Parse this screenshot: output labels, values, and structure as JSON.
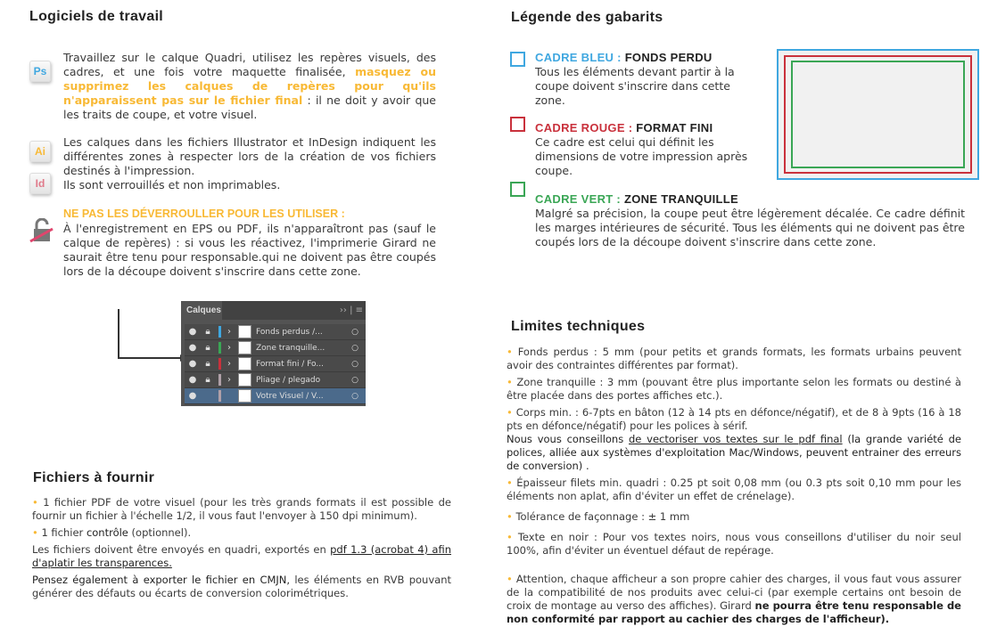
{
  "logiciels": {
    "title": "Logiciels de travail",
    "ps_icon": "Ps",
    "ai_icon": "Ai",
    "id_icon": "Id",
    "p1_a": "Travaillez sur le calque Quadri, utilisez les repères visuels, des cadres, et une fois votre maquette finalisée, ",
    "p1_b": "masquez ou supprimez les calques de repères pour qu'ils n'apparaissent pas sur le fichier final",
    "p1_c": " : il ne doit y avoir que les traits de coupe, et votre visuel.",
    "p2": "Les calques dans les fichiers Illustrator et InDesign indiquent les différentes zones à respecter lors de la création de vos fichiers destinés à l'impression.",
    "p3": "Ils sont verrouillés et non imprimables.",
    "warning_title": "NE PAS LES DÉVERROULLER POUR LES UTILISER :",
    "warning_text": "À l'enregistrement en EPS ou PDF, ils n'apparaîtront pas (sauf le calque de repères) : si vous les réactivez, l'imprimerie Girard ne saurait être tenu pour responsable.qui ne doivent pas être coupés lors de la découpe doivent s'inscrire dans cette zone."
  },
  "layers_panel": {
    "title": "Calques",
    "menu_icons": "›› | ≡",
    "layers": [
      {
        "name": "Fonds perdus /...",
        "color": "#3fa7e0",
        "locked": true
      },
      {
        "name": "Zone tranquille...",
        "color": "#3aa655",
        "locked": true
      },
      {
        "name": "Format fini / Fo...",
        "color": "#c9313c",
        "locked": true
      },
      {
        "name": "Pliage / plegado",
        "color": "#b0a0a8",
        "locked": true
      },
      {
        "name": "Votre Visuel / V...",
        "color": "#b0a0a8",
        "locked": false
      }
    ]
  },
  "fichiers": {
    "title": "Fichiers à fournir",
    "b1": "1 fichier PDF de votre visuel (pour les très grands formats il est possible de fournir un fichier à l'échelle 1/2, il vous faut l'envoyer à 150 dpi minimum).",
    "b2_a": "1 fichier ",
    "b2_b": "contrôle",
    "b2_c": "  (optionnel).",
    "p1_a": "Les fichiers doivent être envoyés en quadri, exportés en ",
    "p1_b": "pdf 1.3 (acrobat 4) afin d'aplatir les transparences.",
    "p2_a": "Pensez également à exporter le fichier en CMJN,",
    "p2_b": " les éléments en RVB pouvant générer des défauts ou écarts de conversion colorimétriques."
  },
  "legende": {
    "title": "Légende des gabarits",
    "bleu_label": "CADRE BLEU :",
    "bleu_title": "FONDS PERDU",
    "bleu_text": "Tous les éléments devant partir à la coupe doivent s'inscrire dans cette zone.",
    "rouge_label": "CADRE ROUGE :",
    "rouge_title": "FORMAT FINI",
    "rouge_text": "Ce cadre est celui qui définit les dimensions de votre impression après coupe.",
    "vert_label": "CADRE VERT :",
    "vert_title": "ZONE TRANQUILLE",
    "vert_text": "Malgré sa précision, la coupe peut être légèrement décalée. Ce cadre définit les marges intérieures de sécurité. Tous les éléments qui ne doivent pas être coupés lors de la découpe doivent s'inscrire dans cette zone.",
    "colors": {
      "bleu": "#3fa7e0",
      "rouge": "#c9313c",
      "vert": "#3aa655",
      "accent": "#f8b935"
    }
  },
  "limites": {
    "title": "Limites techniques",
    "i1": "Fonds perdus : 5 mm (pour petits et grands formats, les formats urbains peuvent avoir des contraintes différentes par format).",
    "i2": " Zone tranquille : 3 mm (pouvant être plus importante selon les formats ou destiné à être placée dans des portes affiches etc.).",
    "i3": "Corps min. : 6-7pts en bâton (12 à 14 pts en défonce/négatif), et de 8 à 9pts (16 à 18 pts en défonce/négatif) pour les polices à sérif.",
    "i3_bold_a": "Nous vous conseillons ",
    "i3_bold_u": "de vectoriser vos textes sur le pdf final",
    "i3_bold_b": " (la grande variété de polices, alliée aux systèmes d'exploitation Mac/Windows, peuvent entrainer des erreurs de conversion) .",
    "i4": "Épaisseur filets min. quadri : 0.25 pt soit 0,08 mm (ou 0.3 pts soit 0,10 mm pour les éléments non aplat, afin d'éviter un effet de crénelage).",
    "i5": "Tolérance de façonnage : ± 1 mm",
    "i6": "Texte en noir : Pour vos textes noirs, nous vous conseillons d'utiliser du noir seul 100%, afin  d'éviter un éventuel défaut de repérage.",
    "i7_a": " Attention, chaque afficheur a son propre cahier des charges, il vous faut vous assurer de la compatibilité de nos produits avec celui-ci (par exemple certains ont besoin de croix de montage au verso des affiches).   Girard  ",
    "i7_b": " ne pourra être tenu responsable de non conformité par rapport au cachier des charges de l'afficheur)."
  }
}
